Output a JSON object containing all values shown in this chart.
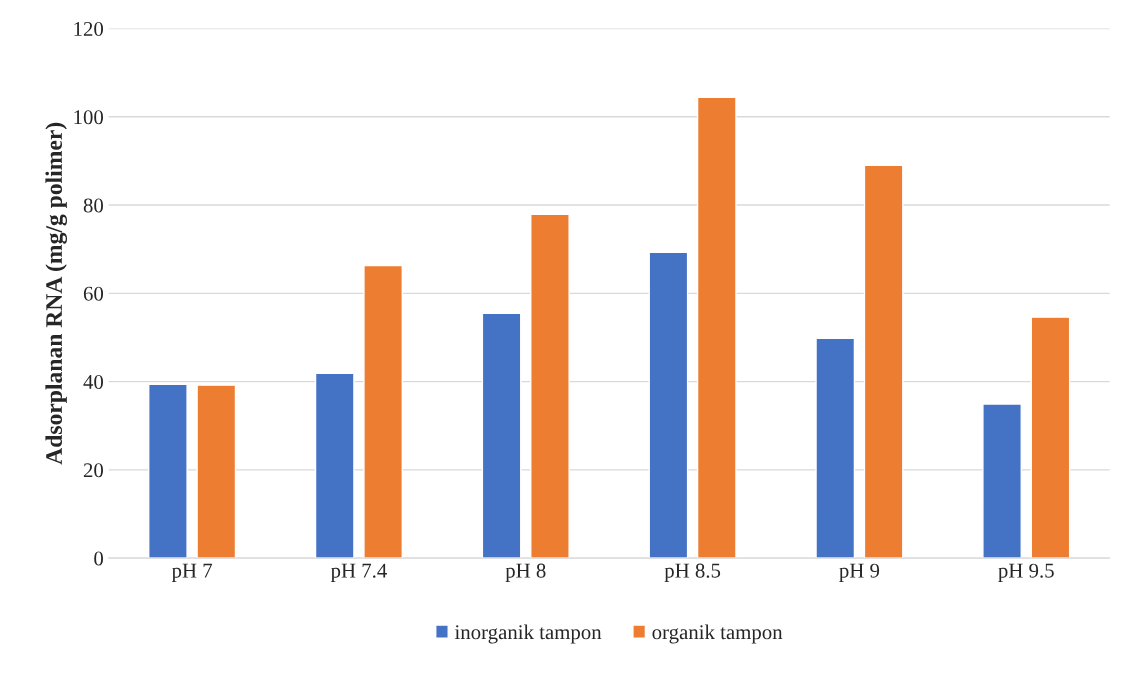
{
  "chart_data": {
    "type": "bar",
    "ylabel": "Adsorplanan RNA (mg/g polimer)",
    "categories": [
      "pH 7",
      "pH 7.4",
      "pH 8",
      "pH 8.5",
      "pH 9",
      "pH 9.5"
    ],
    "series": [
      {
        "name": "inorganik tampon",
        "color": "#4472c4",
        "values": [
          39.4,
          41.9,
          55.5,
          69.3,
          49.8,
          34.9
        ]
      },
      {
        "name": "organik tampon",
        "color": "#ed7d31",
        "values": [
          39.2,
          66.3,
          77.9,
          104.4,
          89.0,
          54.6
        ]
      }
    ],
    "ylim": [
      0,
      120
    ],
    "yticks": [
      0,
      20,
      40,
      60,
      80,
      100,
      120
    ],
    "grid": "y",
    "legend": "bottom"
  }
}
